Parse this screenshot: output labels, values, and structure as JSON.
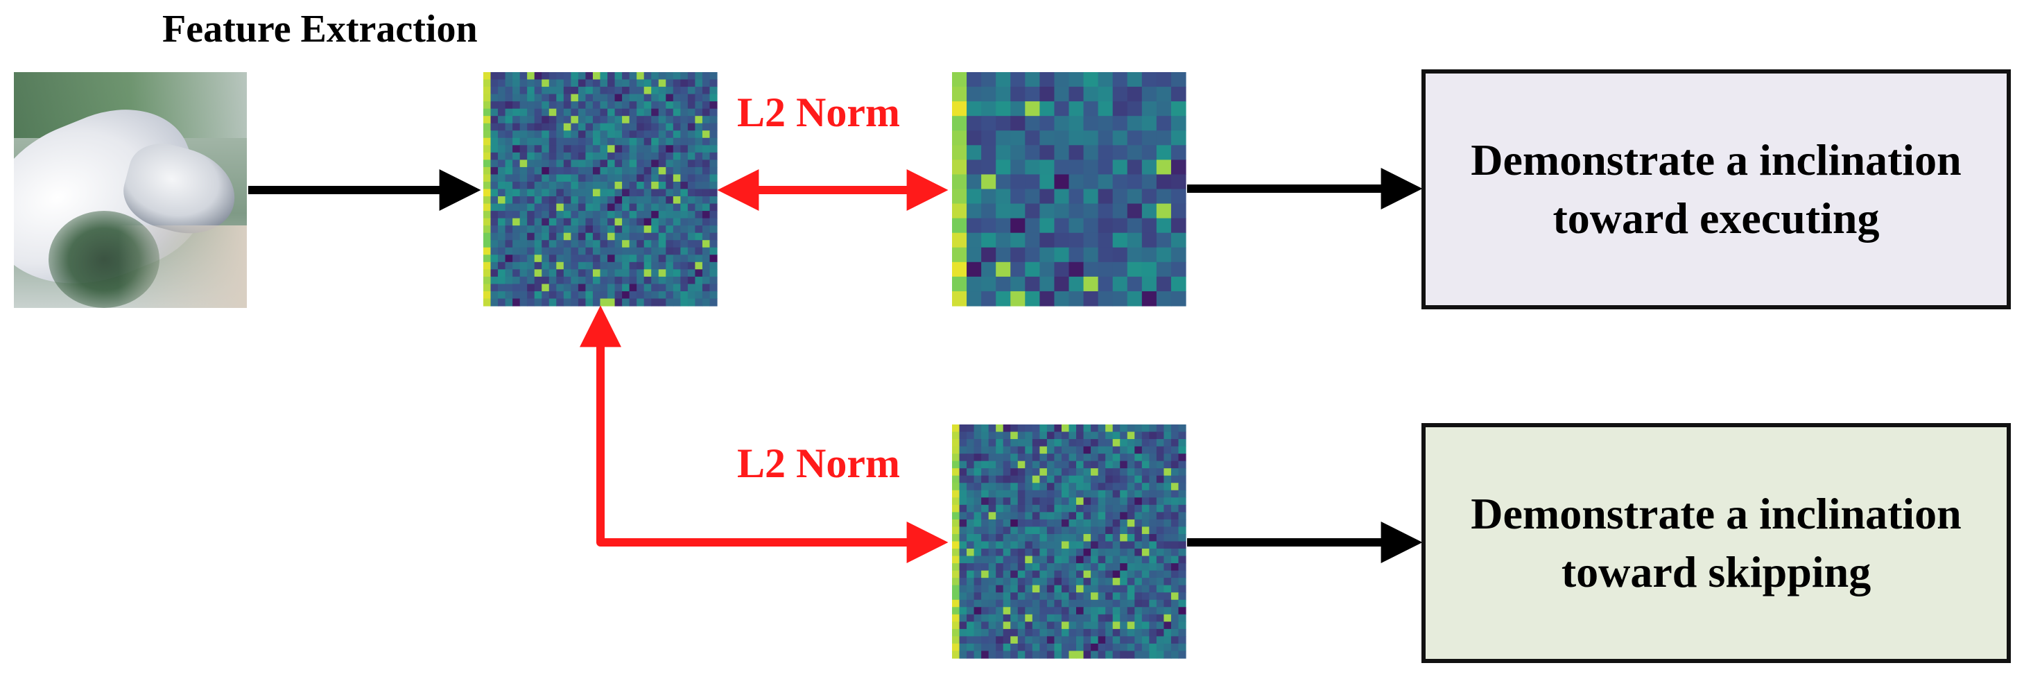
{
  "diagram": {
    "title": "Feature Extraction",
    "edge_label_top": "L2 Norm",
    "edge_label_bottom": "L2 Norm",
    "result_top": {
      "line1": "Demonstrate a inclination",
      "line2": "toward executing"
    },
    "result_bottom": {
      "line1": "Demonstrate a inclination",
      "line2": "toward skipping"
    },
    "colors": {
      "arrow_main": "#000000",
      "arrow_compare": "#ff1a1a",
      "result_top_fill": "#eceaf2",
      "result_bottom_fill": "#e6ecdc",
      "heatmap_low": "#440154",
      "heatmap_mid": "#21918c",
      "heatmap_high": "#fde725"
    }
  }
}
